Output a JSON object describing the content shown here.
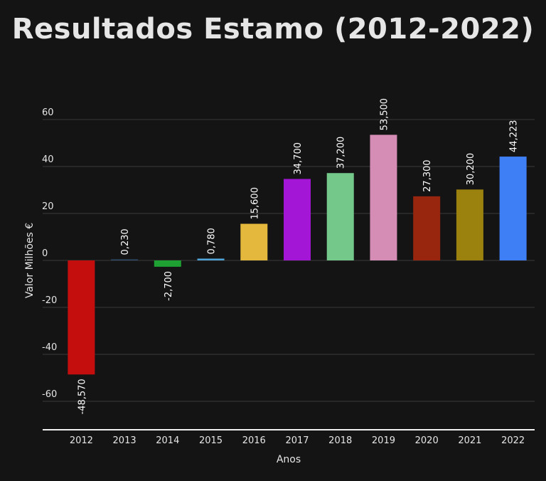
{
  "chart_data": {
    "type": "bar",
    "title": "Resultados Estamo (2012-2022)",
    "xlabel": "Anos",
    "ylabel": "Valor Milhões €",
    "categories": [
      "2012",
      "2013",
      "2014",
      "2015",
      "2016",
      "2017",
      "2018",
      "2019",
      "2020",
      "2021",
      "2022"
    ],
    "values": [
      -48.57,
      0.23,
      -2.7,
      0.78,
      15.6,
      34.7,
      37.2,
      53.5,
      27.3,
      30.2,
      44.223
    ],
    "value_labels": [
      "-48,570",
      "0,230",
      "-2,700",
      "0,780",
      "15,600",
      "34,700",
      "37,200",
      "53,500",
      "27,300",
      "30,200",
      "44,223"
    ],
    "colors": [
      "#c40e0e",
      "#2f4a6a",
      "#1ea033",
      "#4fa3d6",
      "#e3b83c",
      "#a416d6",
      "#74c98a",
      "#d58db5",
      "#98260e",
      "#9b820e",
      "#3f7ff5"
    ],
    "yticks": [
      -60,
      -40,
      -20,
      0,
      20,
      40,
      60
    ],
    "ylim": [
      -72,
      72
    ],
    "grid": true,
    "legend": "none"
  }
}
